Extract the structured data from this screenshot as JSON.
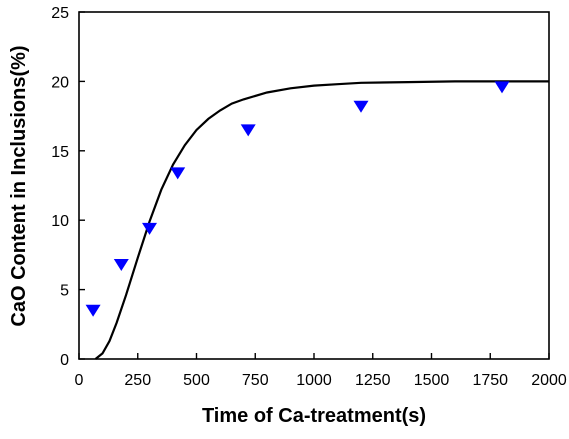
{
  "chart_data": {
    "type": "scatter",
    "title": "",
    "xlabel": "Time of Ca-treatment(s)",
    "ylabel": "CaO Content in Inclusions(%)",
    "xlim": [
      0,
      2000
    ],
    "ylim": [
      0,
      25
    ],
    "x_ticks": [
      "0",
      "250",
      "500",
      "750",
      "1000",
      "1250",
      "1500",
      "1750",
      "2000"
    ],
    "y_ticks": [
      "0",
      "5",
      "10",
      "15",
      "20",
      "25"
    ],
    "grid": false,
    "legend": "none",
    "series": [
      {
        "kind": "points",
        "marker": "down-triangle",
        "color": "#0000ff",
        "x": [
          60,
          180,
          300,
          420,
          720,
          1200,
          1800
        ],
        "y": [
          3.5,
          6.8,
          9.4,
          13.4,
          16.5,
          18.2,
          19.6
        ]
      },
      {
        "kind": "line",
        "color": "#000000",
        "x": [
          70,
          100,
          130,
          160,
          200,
          250,
          300,
          350,
          400,
          450,
          500,
          550,
          600,
          650,
          700,
          800,
          900,
          1000,
          1100,
          1200,
          1400,
          1600,
          1800,
          2000
        ],
        "y": [
          0,
          0.4,
          1.3,
          2.6,
          4.6,
          7.3,
          9.9,
          12.2,
          14.0,
          15.4,
          16.5,
          17.3,
          17.9,
          18.4,
          18.7,
          19.2,
          19.5,
          19.7,
          19.8,
          19.9,
          19.95,
          20.0,
          20.0,
          20.0
        ]
      }
    ]
  }
}
